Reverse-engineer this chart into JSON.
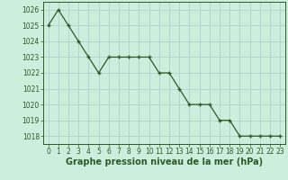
{
  "x": [
    0,
    1,
    2,
    3,
    4,
    5,
    6,
    7,
    8,
    9,
    10,
    11,
    12,
    13,
    14,
    15,
    16,
    17,
    18,
    19,
    20,
    21,
    22,
    23
  ],
  "y": [
    1025,
    1026,
    1025,
    1024,
    1023,
    1022,
    1023,
    1023,
    1023,
    1023,
    1023,
    1022,
    1022,
    1021,
    1020,
    1020,
    1020,
    1019,
    1019,
    1018,
    1018,
    1018,
    1018,
    1018
  ],
  "line_color": "#2d5a27",
  "marker": "+",
  "background_color": "#cceedd",
  "grid_color": "#aacccc",
  "xlabel": "Graphe pression niveau de la mer (hPa)",
  "xlabel_fontsize": 7,
  "ylim": [
    1017.5,
    1026.5
  ],
  "xlim": [
    -0.5,
    23.5
  ],
  "yticks": [
    1018,
    1019,
    1020,
    1021,
    1022,
    1023,
    1024,
    1025,
    1026
  ],
  "xticks": [
    0,
    1,
    2,
    3,
    4,
    5,
    6,
    7,
    8,
    9,
    10,
    11,
    12,
    13,
    14,
    15,
    16,
    17,
    18,
    19,
    20,
    21,
    22,
    23
  ],
  "tick_fontsize": 5.5,
  "tick_color": "#2d5a27",
  "fig_bg_color": "#cceedd",
  "spine_color": "#2d5a27",
  "markersize": 3,
  "linewidth": 0.9
}
